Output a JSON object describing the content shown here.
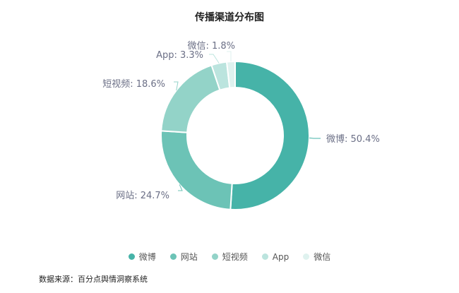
{
  "chart_data": {
    "type": "pie",
    "title": "传播渠道分布图",
    "categories": [
      "微博",
      "网站",
      "短视频",
      "App",
      "微信"
    ],
    "values": [
      50.4,
      24.7,
      18.6,
      3.3,
      1.8
    ],
    "labels": [
      "微博: 50.4%",
      "网站: 24.7%",
      "短视频: 18.6%",
      "App: 3.3%",
      "微信: 1.8%"
    ],
    "colors": [
      "#46b3a8",
      "#6cc3b6",
      "#93d3c8",
      "#bbe4de",
      "#dff2ef"
    ],
    "donut": true,
    "legend_position": "bottom"
  },
  "footer": {
    "source": "数据来源：百分点舆情洞察系统"
  }
}
